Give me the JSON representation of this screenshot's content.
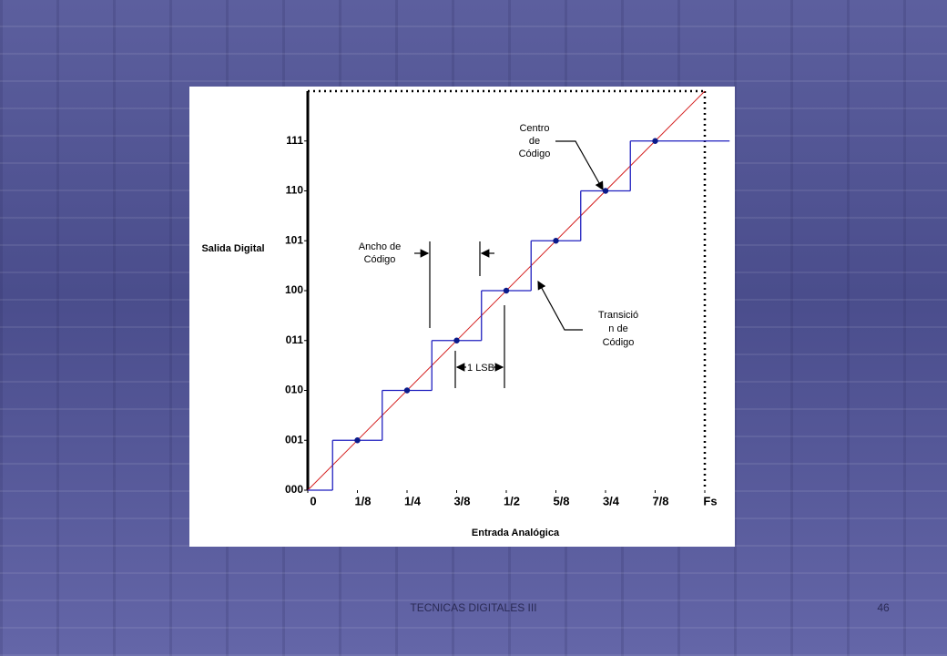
{
  "slide": {
    "footer": "TECNICAS DIGITALES III",
    "page_number": 46
  },
  "chart_data": {
    "type": "step",
    "x_label": "Entrada Analógica",
    "y_label": "Salida Digital",
    "xlim": [
      0,
      1.0625
    ],
    "ylim": [
      0,
      8
    ],
    "xticks": [
      0,
      {
        "value": 0.125,
        "label": "1/8"
      },
      {
        "value": 0.25,
        "label": "1/4"
      },
      {
        "value": 0.375,
        "label": "3/8"
      },
      {
        "value": 0.5,
        "label": "1/2"
      },
      {
        "value": 0.625,
        "label": "5/8"
      },
      {
        "value": 0.75,
        "label": "3/4"
      },
      {
        "value": 0.875,
        "label": "7/8"
      },
      {
        "value": 1,
        "label": "Fs"
      }
    ],
    "yticks": [
      {
        "value": 0,
        "label": "000"
      },
      {
        "value": 1,
        "label": "001"
      },
      {
        "value": 2,
        "label": "010"
      },
      {
        "value": 3,
        "label": "011"
      },
      {
        "value": 4,
        "label": "100"
      },
      {
        "value": 5,
        "label": "101"
      },
      {
        "value": 6,
        "label": "110"
      },
      {
        "value": 7,
        "label": "111"
      }
    ],
    "steps": {
      "color": "#1f1fbf",
      "x": [
        0,
        0.0625,
        0.1875,
        0.3125,
        0.4375,
        0.5625,
        0.6875,
        0.8125
      ],
      "values": [
        0,
        1,
        2,
        3,
        4,
        5,
        6,
        7
      ]
    },
    "code_centers": {
      "color": "#0a1a8a",
      "x": [
        0.125,
        0.25,
        0.375,
        0.5,
        0.625,
        0.75,
        0.875
      ],
      "values": [
        1,
        2,
        3,
        4,
        5,
        6,
        7
      ]
    },
    "ideal": {
      "color": "#d42020",
      "x": [
        0,
        1
      ],
      "values": [
        0,
        8
      ]
    },
    "annotations": {
      "code_center": [
        "Centro",
        "de",
        "Código"
      ],
      "code_width": [
        "Ancho de",
        "Código"
      ],
      "code_transition": [
        "Transició",
        "n de",
        "Código"
      ],
      "lsb": "1 LSB"
    }
  }
}
